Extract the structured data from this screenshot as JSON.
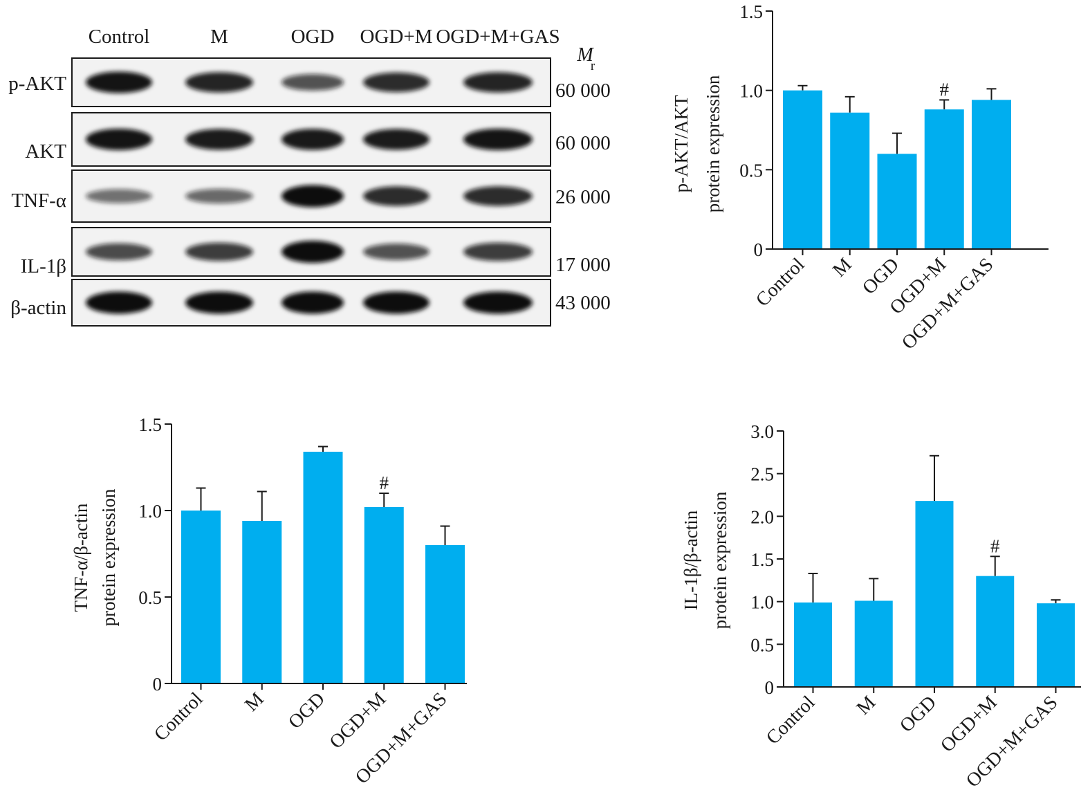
{
  "western_blot": {
    "lane_labels": [
      "Control",
      "M",
      "OGD",
      "OGD+M",
      "OGD+M+GAS"
    ],
    "mr_symbol": "M",
    "mr_subscript": "r",
    "bands": [
      {
        "label": "p-AKT",
        "mr": "60 000",
        "intensity": [
          0.95,
          0.85,
          0.55,
          0.8,
          0.85
        ]
      },
      {
        "label": "AKT",
        "mr": "60 000",
        "intensity": [
          0.95,
          0.9,
          0.92,
          0.9,
          0.95
        ]
      },
      {
        "label": "TNF-α",
        "mr": "26 000",
        "intensity": [
          0.35,
          0.4,
          1.0,
          0.8,
          0.8
        ]
      },
      {
        "label": "IL-1β",
        "mr": "17 000",
        "intensity": [
          0.6,
          0.7,
          1.0,
          0.55,
          0.7
        ]
      },
      {
        "label": "β-actin",
        "mr": "43 000",
        "intensity": [
          1.0,
          1.0,
          1.0,
          1.0,
          1.0
        ]
      }
    ]
  },
  "colors": {
    "bar": "#00AEEF",
    "axis": "#1a1a1a",
    "band": "#111111",
    "blot_bg": "#f2f2f2"
  },
  "chart_data": [
    {
      "type": "bar",
      "categories": [
        "Control",
        "M",
        "OGD",
        "OGD+M",
        "OGD+M+GAS"
      ],
      "values": [
        1.0,
        0.86,
        0.6,
        0.88,
        0.94
      ],
      "errors": [
        0.03,
        0.1,
        0.13,
        0.06,
        0.07
      ],
      "annotations": [
        "",
        "",
        "",
        "#",
        ""
      ],
      "ylabel": [
        "p-AKT/AKT",
        "protein expression"
      ],
      "ylim": [
        0,
        1.5
      ],
      "yticks": [
        0,
        0.5,
        1.0,
        1.5
      ],
      "ytick_labels": [
        "0",
        "0.5",
        "1.0",
        "1.5"
      ]
    },
    {
      "type": "bar",
      "categories": [
        "Control",
        "M",
        "OGD",
        "OGD+M",
        "OGD+M+GAS"
      ],
      "values": [
        1.0,
        0.94,
        1.34,
        1.02,
        0.8
      ],
      "errors": [
        0.13,
        0.17,
        0.03,
        0.08,
        0.11
      ],
      "annotations": [
        "",
        "",
        "",
        "#",
        ""
      ],
      "ylabel": [
        "TNF-α/β-actin",
        "protein expression"
      ],
      "ylim": [
        0,
        1.5
      ],
      "yticks": [
        0,
        0.5,
        1.0,
        1.5
      ],
      "ytick_labels": [
        "0",
        "0.5",
        "1.0",
        "1.5"
      ]
    },
    {
      "type": "bar",
      "categories": [
        "Control",
        "M",
        "OGD",
        "OGD+M",
        "OGD+M+GAS"
      ],
      "values": [
        0.99,
        1.01,
        2.18,
        1.3,
        0.98
      ],
      "errors": [
        0.34,
        0.26,
        0.53,
        0.23,
        0.04
      ],
      "annotations": [
        "",
        "",
        "",
        "#",
        ""
      ],
      "ylabel": [
        "IL-1β/β-actin",
        "protein expression"
      ],
      "ylim": [
        0,
        3.0
      ],
      "yticks": [
        0,
        0.5,
        1.0,
        1.5,
        2.0,
        2.5,
        3.0
      ],
      "ytick_labels": [
        "0",
        "0.5",
        "1.0",
        "1.5",
        "2.0",
        "2.5",
        "3.0"
      ]
    }
  ]
}
